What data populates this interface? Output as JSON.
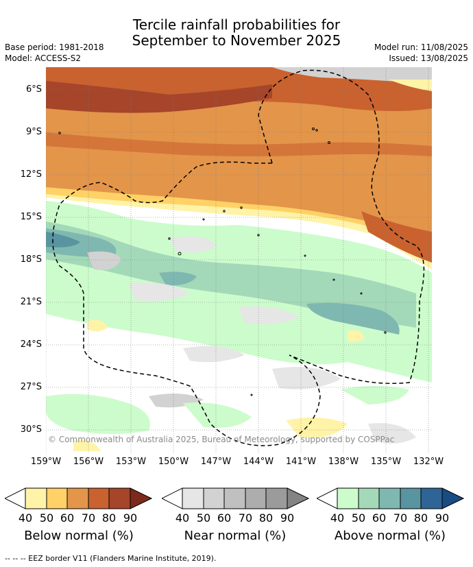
{
  "header": {
    "title_line1": "Tercile rainfall probabilities for",
    "title_line2": "September to November 2025",
    "base_period": "Base period: 1981-2018",
    "model": "Model: ACCESS-S2",
    "model_run": "Model run: 11/08/2025",
    "issued": "Issued: 13/08/2025"
  },
  "map": {
    "copyright": "© Commonwealth of Australia 2025, Bureau of Meteorology, supported by COSPPac",
    "longitude_labels": [
      "159°W",
      "156°W",
      "153°W",
      "150°W",
      "147°W",
      "144°W",
      "141°W",
      "138°W",
      "135°W",
      "132°W"
    ],
    "latitude_labels": [
      "6°S",
      "9°S",
      "12°S",
      "15°S",
      "18°S",
      "21°S",
      "24°S",
      "27°S",
      "30°S"
    ]
  },
  "legend": {
    "ticks": [
      "40",
      "50",
      "60",
      "70",
      "80",
      "90"
    ],
    "below": {
      "title": "Below normal (%)",
      "colors": [
        "#fff3a8",
        "#ffd166",
        "#e3954a",
        "#c9622f",
        "#a6452a",
        "#7d2a1c"
      ]
    },
    "near": {
      "title": "Near normal (%)",
      "colors": [
        "#e6e6e6",
        "#d2d2d2",
        "#c0c0c0",
        "#adadad",
        "#9b9b9b",
        "#848484"
      ]
    },
    "above": {
      "title": "Above normal (%)",
      "colors": [
        "#ccfccc",
        "#a3d9b9",
        "#7fb8b0",
        "#5994a1",
        "#2f6496",
        "#1a4c84"
      ]
    }
  },
  "footer": {
    "eez_note": "--  --  -- EEZ border V11 (Flanders Marine Institute, 2019)."
  }
}
